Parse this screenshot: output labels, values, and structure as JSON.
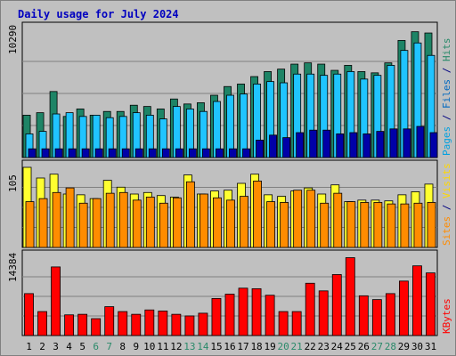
{
  "chart_data": {
    "type": "bar",
    "title": "Daily usage for July 2024",
    "categories": [
      "1",
      "2",
      "3",
      "4",
      "5",
      "6",
      "7",
      "8",
      "9",
      "10",
      "11",
      "12",
      "13",
      "14",
      "15",
      "16",
      "17",
      "18",
      "19",
      "20",
      "21",
      "22",
      "23",
      "24",
      "25",
      "26",
      "27",
      "28",
      "29",
      "30",
      "31"
    ],
    "weekend_days": [
      "6",
      "7",
      "13",
      "14",
      "20",
      "21",
      "27",
      "28"
    ],
    "panels": [
      {
        "id": "top",
        "max_label": "10290",
        "ymax": 10290,
        "grid": true,
        "side_labels": [
          {
            "text": "Pages",
            "color": "#00a0e0"
          },
          {
            "text": " / ",
            "color": "#000080"
          },
          {
            "text": "Files",
            "color": "#0068c0"
          },
          {
            "text": " / ",
            "color": "#000080"
          },
          {
            "text": "Hits",
            "color": "#2a8a6a"
          }
        ],
        "series": [
          {
            "name": "Hits",
            "color": "#1e8466",
            "values": [
              3400,
              3600,
              5300,
              3300,
              3900,
              3400,
              3700,
              3700,
              4200,
              4100,
              3900,
              4700,
              4300,
              4400,
              5000,
              5700,
              5900,
              6500,
              6900,
              7100,
              7500,
              7600,
              7500,
              7000,
              7400,
              6900,
              6800,
              7600,
              9400,
              10100,
              10000
            ]
          },
          {
            "name": "Files",
            "color": "#20c4ff",
            "values": [
              1900,
              2100,
              3500,
              3600,
              3300,
              3400,
              3200,
              3300,
              3600,
              3400,
              3100,
              4100,
              3900,
              3700,
              4500,
              5000,
              5100,
              5900,
              6100,
              6000,
              6700,
              6700,
              6600,
              6700,
              6900,
              6300,
              6600,
              7400,
              8600,
              9200,
              8200
            ]
          },
          {
            "name": "Pages",
            "color": "#0000a8",
            "values": [
              700,
              700,
              700,
              700,
              700,
              700,
              700,
              700,
              700,
              700,
              700,
              700,
              700,
              700,
              700,
              700,
              700,
              1400,
              1800,
              1600,
              2000,
              2200,
              2200,
              1900,
              2000,
              1900,
              2100,
              2300,
              2300,
              2500,
              2000
            ]
          }
        ]
      },
      {
        "id": "middle",
        "max_label": "105",
        "ymax": 105,
        "grid": true,
        "side_labels": [
          {
            "text": "Sites",
            "color": "#ff8c00"
          },
          {
            "text": " / ",
            "color": "#000080"
          },
          {
            "text": "Visits",
            "color": "#ffd700"
          }
        ],
        "series": [
          {
            "name": "Visits",
            "color": "#ffff30",
            "values": [
              105,
              91,
              96,
              70,
              69,
              64,
              88,
              79,
              70,
              72,
              68,
              66,
              95,
              70,
              74,
              75,
              84,
              96,
              69,
              67,
              74,
              78,
              70,
              82,
              60,
              62,
              62,
              61,
              69,
              73,
              83
            ]
          },
          {
            "name": "Sites",
            "color": "#ff8c00",
            "values": [
              60,
              64,
              72,
              78,
              58,
              64,
              71,
              72,
              62,
              66,
              58,
              65,
              86,
              70,
              65,
              62,
              67,
              87,
              60,
              59,
              75,
              75,
              58,
              71,
              60,
              59,
              59,
              57,
              57,
              58,
              59
            ]
          }
        ]
      },
      {
        "id": "bottom",
        "max_label": "14384",
        "ymax": 14384,
        "grid": true,
        "side_labels": [
          {
            "text": "KBytes",
            "color": "#ff0000"
          }
        ],
        "series": [
          {
            "name": "KBytes",
            "color": "#ff0000",
            "values": [
              7700,
              4400,
              12600,
              3800,
              3900,
              3100,
              5300,
              4400,
              3900,
              4700,
              4500,
              3900,
              3600,
              4100,
              6800,
              7600,
              8700,
              8600,
              7400,
              4400,
              4400,
              9600,
              8200,
              11200,
              14300,
              7300,
              6600,
              7700,
              10000,
              12800,
              11500
            ]
          }
        ]
      }
    ]
  }
}
